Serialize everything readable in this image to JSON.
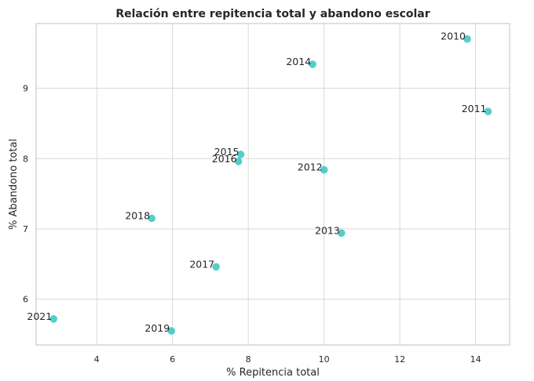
{
  "chart_data": {
    "type": "scatter",
    "title": "Relación entre repitencia total y abandono escolar",
    "xlabel": "% Repitencia total",
    "ylabel": "% Abandono total",
    "xlim": [
      2.4,
      14.9
    ],
    "ylim": [
      5.35,
      9.92
    ],
    "xticks": [
      4,
      6,
      8,
      10,
      12,
      14
    ],
    "yticks": [
      6,
      7,
      8,
      9
    ],
    "grid": true,
    "marker_color": "#40c9c4",
    "points": [
      {
        "label": "2010",
        "x": 13.78,
        "y": 9.7
      },
      {
        "label": "2011",
        "x": 14.33,
        "y": 8.67
      },
      {
        "label": "2012",
        "x": 10.0,
        "y": 7.84
      },
      {
        "label": "2013",
        "x": 10.46,
        "y": 6.94
      },
      {
        "label": "2014",
        "x": 9.7,
        "y": 9.34
      },
      {
        "label": "2015",
        "x": 7.8,
        "y": 8.06
      },
      {
        "label": "2016",
        "x": 7.74,
        "y": 7.96
      },
      {
        "label": "2017",
        "x": 7.15,
        "y": 6.46
      },
      {
        "label": "2018",
        "x": 5.45,
        "y": 7.15
      },
      {
        "label": "2019",
        "x": 5.97,
        "y": 5.55
      },
      {
        "label": "2021",
        "x": 2.86,
        "y": 5.72
      }
    ]
  }
}
